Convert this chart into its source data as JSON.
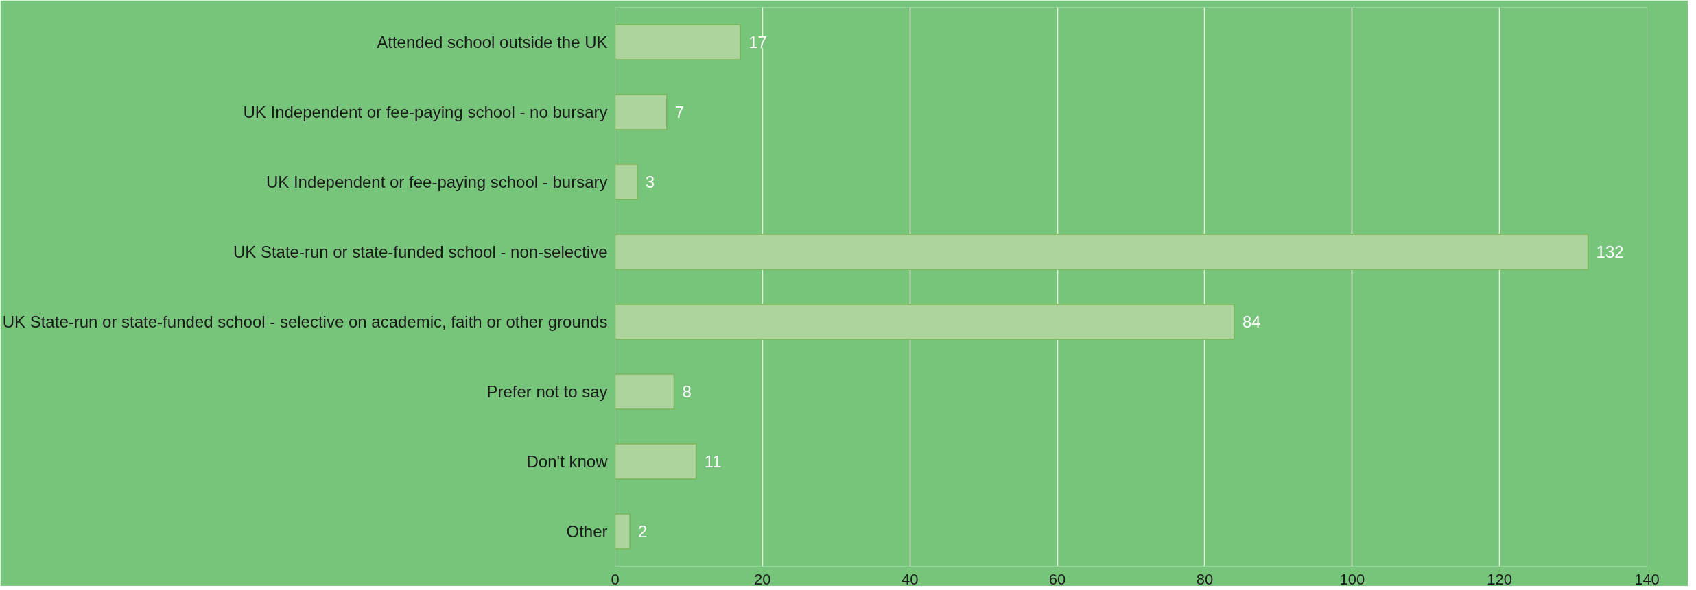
{
  "chart_data": {
    "type": "bar",
    "orientation": "horizontal",
    "categories": [
      "Attended school outside the UK",
      "UK Independent or fee-paying school - no bursary",
      "UK Independent or fee-paying school - bursary",
      "UK State-run or state-funded school - non-selective",
      "UK State-run or state-funded school - selective on academic, faith or other grounds",
      "Prefer not to say",
      "Don't know",
      "Other"
    ],
    "values": [
      17,
      7,
      3,
      132,
      84,
      8,
      11,
      2
    ],
    "color": "#aed49e",
    "xlim": [
      0,
      140
    ],
    "xticks": [
      0,
      20,
      40,
      60,
      80,
      100,
      120,
      140
    ],
    "grid": "x",
    "data_labels": true
  }
}
